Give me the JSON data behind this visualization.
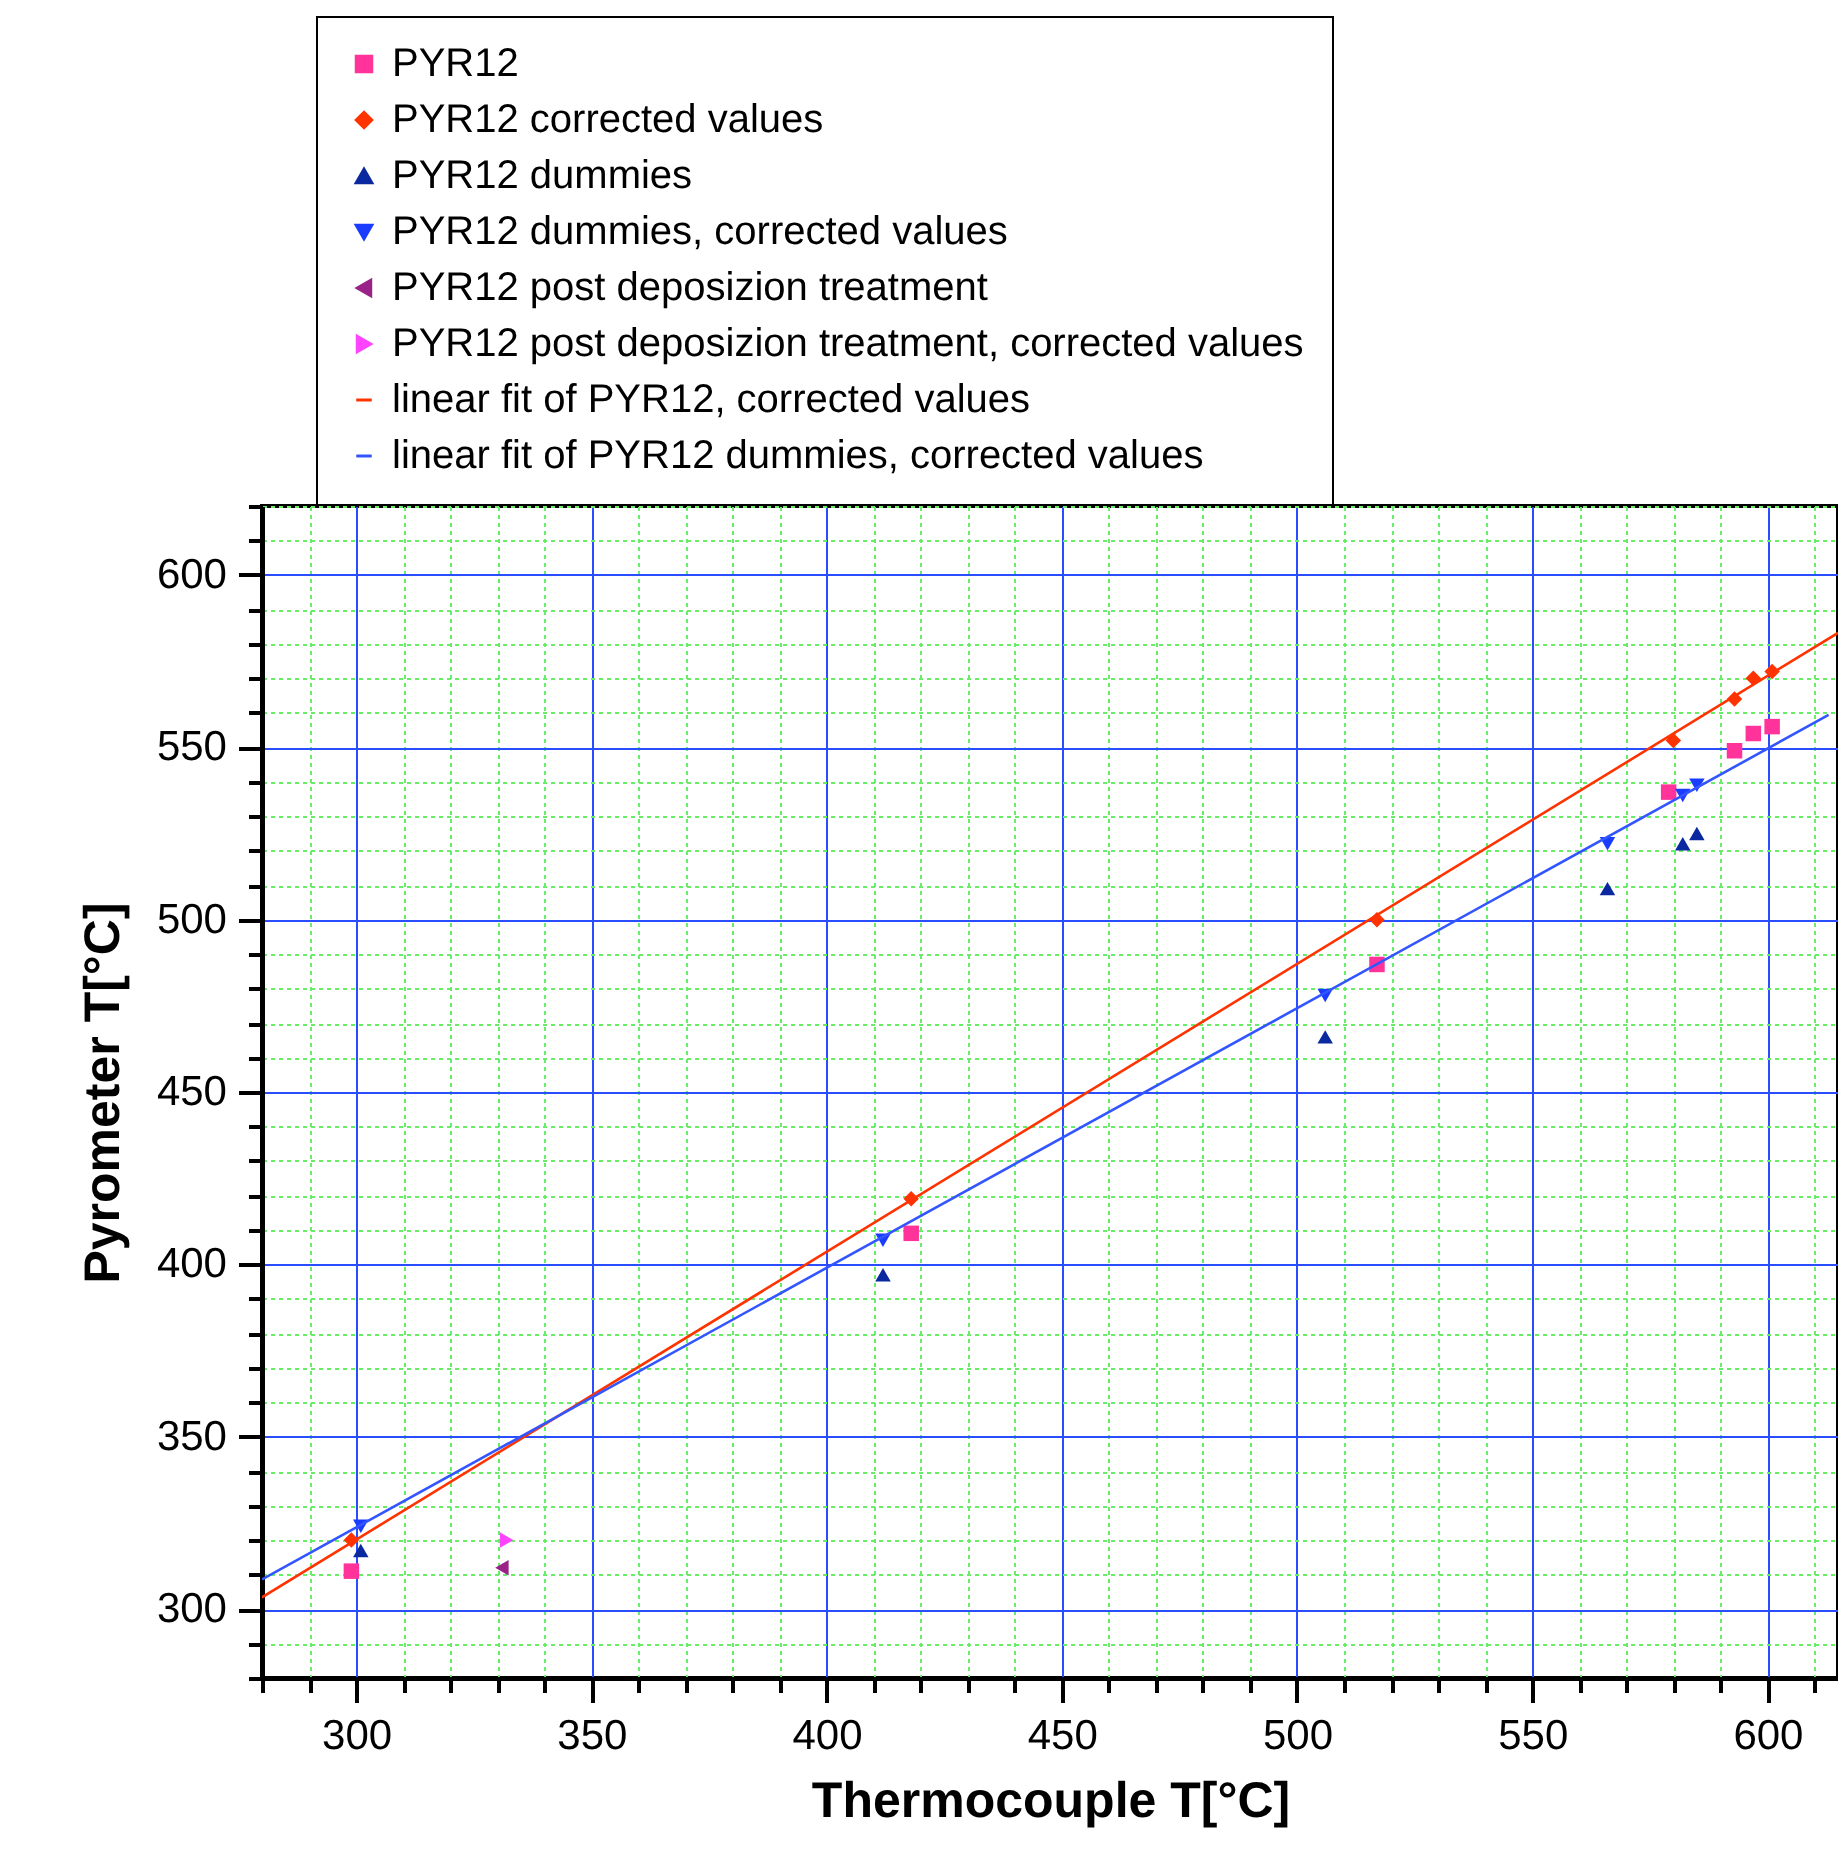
{
  "chart_data": {
    "type": "scatter",
    "xlabel": "Thermocouple T[°C]",
    "ylabel": "Pyrometer T[°C]",
    "xlim": [
      280,
      615
    ],
    "ylim": [
      280,
      620
    ],
    "xticks": [
      {
        "value": 280,
        "label": null
      },
      {
        "value": 290,
        "label": null
      },
      300,
      {
        "value": 310,
        "label": null
      },
      {
        "value": 320,
        "label": null
      },
      {
        "value": 330,
        "label": null
      },
      {
        "value": 340,
        "label": null
      },
      350,
      {
        "value": 360,
        "label": null
      },
      {
        "value": 370,
        "label": null
      },
      {
        "value": 380,
        "label": null
      },
      {
        "value": 390,
        "label": null
      },
      400,
      {
        "value": 410,
        "label": null
      },
      {
        "value": 420,
        "label": null
      },
      {
        "value": 430,
        "label": null
      },
      {
        "value": 440,
        "label": null
      },
      450,
      {
        "value": 460,
        "label": null
      },
      {
        "value": 470,
        "label": null
      },
      {
        "value": 480,
        "label": null
      },
      {
        "value": 490,
        "label": null
      },
      500,
      {
        "value": 510,
        "label": null
      },
      {
        "value": 520,
        "label": null
      },
      {
        "value": 530,
        "label": null
      },
      {
        "value": 540,
        "label": null
      },
      550,
      {
        "value": 560,
        "label": null
      },
      {
        "value": 570,
        "label": null
      },
      {
        "value": 580,
        "label": null
      },
      {
        "value": 590,
        "label": null
      },
      600,
      {
        "value": 610,
        "label": null
      }
    ],
    "yticks": [
      {
        "value": 280,
        "label": null
      },
      {
        "value": 290,
        "label": null
      },
      300,
      {
        "value": 310,
        "label": null
      },
      {
        "value": 320,
        "label": null
      },
      {
        "value": 330,
        "label": null
      },
      {
        "value": 340,
        "label": null
      },
      350,
      {
        "value": 360,
        "label": null
      },
      {
        "value": 370,
        "label": null
      },
      {
        "value": 380,
        "label": null
      },
      {
        "value": 390,
        "label": null
      },
      400,
      {
        "value": 410,
        "label": null
      },
      {
        "value": 420,
        "label": null
      },
      {
        "value": 430,
        "label": null
      },
      {
        "value": 440,
        "label": null
      },
      450,
      {
        "value": 460,
        "label": null
      },
      {
        "value": 470,
        "label": null
      },
      {
        "value": 480,
        "label": null
      },
      {
        "value": 490,
        "label": null
      },
      500,
      {
        "value": 510,
        "label": null
      },
      {
        "value": 520,
        "label": null
      },
      {
        "value": 530,
        "label": null
      },
      {
        "value": 540,
        "label": null
      },
      550,
      {
        "value": 560,
        "label": null
      },
      {
        "value": 570,
        "label": null
      },
      {
        "value": 580,
        "label": null
      },
      {
        "value": 590,
        "label": null
      },
      600,
      {
        "value": 610,
        "label": null
      },
      {
        "value": 620,
        "label": null
      }
    ],
    "grid": true,
    "legend": "top left",
    "series": [
      {
        "name": "PYR12",
        "marker": "square",
        "color": "#ff3399",
        "x": [
          299,
          418,
          517,
          579,
          593,
          597,
          601
        ],
        "values": [
          311,
          409,
          487,
          537,
          549,
          554,
          556
        ]
      },
      {
        "name": "PYR12 corrected values",
        "marker": "diamond",
        "color": "#ff3300",
        "x": [
          299,
          418,
          517,
          580,
          593,
          597,
          601
        ],
        "values": [
          320,
          419,
          500,
          552,
          564,
          570,
          572
        ]
      },
      {
        "name": "PYR12 dummies",
        "marker": "triangle-up",
        "color": "#0a28a0",
        "x": [
          301,
          412,
          506,
          566,
          582,
          585
        ],
        "values": [
          317,
          397,
          466,
          509,
          522,
          525
        ]
      },
      {
        "name": "PYR12 dummies, corrected values",
        "marker": "triangle-down",
        "color": "#1a3cff",
        "x": [
          301,
          412,
          506,
          566,
          582,
          585
        ],
        "values": [
          324,
          407,
          478,
          522,
          536,
          539
        ]
      },
      {
        "name": "PYR12 post deposizion treatment",
        "marker": "triangle-left",
        "color": "#992288",
        "x": [
          331
        ],
        "values": [
          312
        ]
      },
      {
        "name": "PYR12 post deposizion treatment, corrected values",
        "marker": "triangle-right",
        "color": "#ff44ff",
        "x": [
          332
        ],
        "values": [
          320
        ]
      },
      {
        "name": "linear fit of PYR12, corrected values",
        "type": "line",
        "color": "#ff3300",
        "x": [
          280,
          615
        ],
        "values": [
          303.4,
          583.2
        ]
      },
      {
        "name": "linear fit of PYR12 dummies, corrected values",
        "type": "line",
        "color": "#3355ff",
        "x": [
          280,
          613
        ],
        "values": [
          308.6,
          559.4
        ]
      }
    ]
  }
}
